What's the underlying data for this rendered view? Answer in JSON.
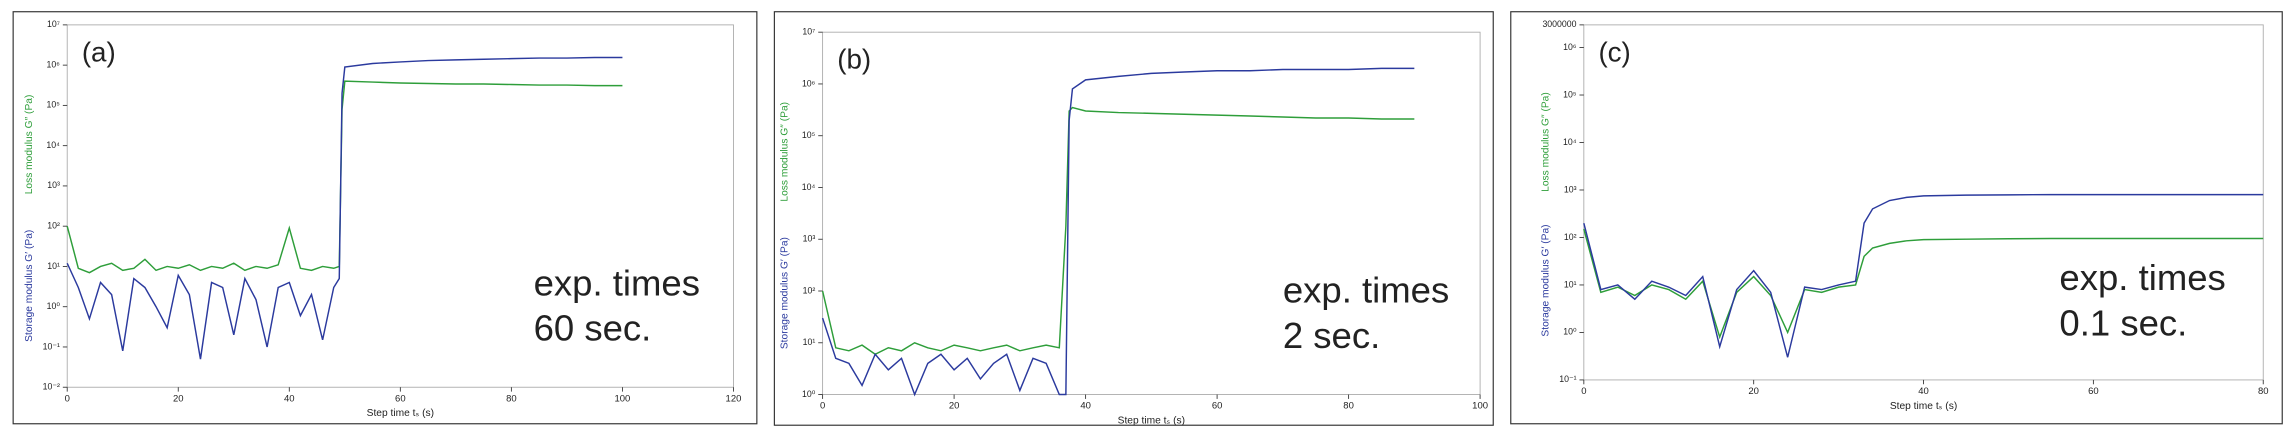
{
  "chart_data": [
    {
      "type": "line",
      "label": "(a)",
      "annotation": [
        "exp. times",
        "60 sec."
      ],
      "x_label": "Step time tₛ (s)",
      "log_y": true,
      "x": [
        0,
        2,
        4,
        6,
        8,
        10,
        12,
        14,
        16,
        18,
        20,
        22,
        24,
        26,
        28,
        30,
        32,
        34,
        36,
        38,
        40,
        42,
        44,
        46,
        48,
        49,
        49.5,
        50,
        55,
        60,
        65,
        70,
        75,
        80,
        85,
        90,
        95,
        100
      ],
      "series": [
        {
          "name": "Loss modulus G″ (Pa)",
          "color": "#2e9e3a",
          "values": [
            100,
            9,
            7,
            10,
            12,
            8,
            9,
            15,
            8,
            10,
            9,
            11,
            8,
            10,
            9,
            12,
            8,
            10,
            9,
            11,
            90,
            9,
            8,
            10,
            9,
            10,
            80000,
            400000,
            380000,
            360000,
            350000,
            340000,
            340000,
            330000,
            320000,
            320000,
            310000,
            310000
          ]
        },
        {
          "name": "Storage modulus G′ (Pa)",
          "color": "#2b3a9e",
          "values": [
            12,
            3,
            0.5,
            4,
            2,
            0.08,
            5,
            3,
            1,
            0.3,
            6,
            2,
            0.05,
            4,
            3,
            0.2,
            5,
            1.5,
            0.1,
            3,
            4,
            0.6,
            2,
            0.15,
            3,
            5,
            200000,
            900000,
            1100000,
            1200000,
            1300000,
            1350000,
            1400000,
            1450000,
            1500000,
            1500000,
            1550000,
            1550000
          ]
        }
      ],
      "xlim": [
        0,
        120
      ],
      "xticks": [
        0,
        20,
        40,
        60,
        80,
        100,
        120
      ],
      "ylim": [
        0.01,
        10000000
      ],
      "yticks": [
        {
          "value": 10000000,
          "label": "10⁷"
        },
        {
          "value": 1000000,
          "label": "10⁶"
        },
        {
          "value": 100000,
          "label": "10⁵"
        },
        {
          "value": 10000,
          "label": "10⁴"
        },
        {
          "value": 1000,
          "label": "10³"
        },
        {
          "value": 100,
          "label": "10²"
        },
        {
          "value": 10,
          "label": "10¹"
        },
        {
          "value": 1,
          "label": "10⁰"
        },
        {
          "value": 0.1,
          "label": "10⁻¹"
        },
        {
          "value": 0.01,
          "label": "10⁻²"
        }
      ]
    },
    {
      "type": "line",
      "label": "(b)",
      "annotation": [
        "exp. times",
        "2 sec."
      ],
      "x_label": "Step time tₛ (s)",
      "log_y": true,
      "x": [
        0,
        2,
        4,
        6,
        8,
        10,
        12,
        14,
        16,
        18,
        20,
        22,
        24,
        26,
        28,
        30,
        32,
        34,
        36,
        37,
        37.5,
        38,
        40,
        45,
        50,
        55,
        60,
        65,
        70,
        75,
        80,
        85,
        90
      ],
      "series": [
        {
          "name": "Loss modulus G″ (Pa)",
          "color": "#2e9e3a",
          "values": [
            100,
            8,
            7,
            9,
            6,
            8,
            7,
            10,
            8,
            7,
            9,
            8,
            7,
            8,
            9,
            7,
            8,
            9,
            8,
            1800,
            300000,
            350000,
            300000,
            280000,
            270000,
            260000,
            250000,
            240000,
            230000,
            220000,
            220000,
            210000,
            210000
          ]
        },
        {
          "name": "Storage modulus G′ (Pa)",
          "color": "#2b3a9e",
          "values": [
            30,
            5,
            4,
            1.5,
            6,
            3,
            5,
            1,
            4,
            6,
            3,
            5,
            2,
            4,
            6,
            1.2,
            5,
            4,
            1,
            1,
            200000,
            800000,
            1200000,
            1400000,
            1600000,
            1700000,
            1800000,
            1800000,
            1900000,
            1900000,
            1900000,
            2000000,
            2000000
          ]
        }
      ],
      "xlim": [
        0,
        100
      ],
      "xticks": [
        0,
        20,
        40,
        60,
        80,
        100
      ],
      "ylim": [
        1,
        10000000
      ],
      "yticks": [
        {
          "value": 10000000,
          "label": "10⁷"
        },
        {
          "value": 1000000,
          "label": "10⁶"
        },
        {
          "value": 100000,
          "label": "10⁵"
        },
        {
          "value": 10000,
          "label": "10⁴"
        },
        {
          "value": 1000,
          "label": "10³"
        },
        {
          "value": 100,
          "label": "10²"
        },
        {
          "value": 10,
          "label": "10¹"
        },
        {
          "value": 1,
          "label": "10⁰"
        }
      ]
    },
    {
      "type": "line",
      "label": "(c)",
      "annotation": [
        "exp. times",
        "0.1 sec."
      ],
      "x_label": "Step time tₛ (s)",
      "log_y": true,
      "x": [
        0,
        2,
        4,
        6,
        8,
        10,
        12,
        14,
        16,
        18,
        20,
        22,
        24,
        26,
        28,
        30,
        32,
        33,
        34,
        36,
        38,
        40,
        45,
        50,
        55,
        60,
        65,
        70,
        75,
        80
      ],
      "series": [
        {
          "name": "Loss modulus G″ (Pa)",
          "color": "#2e9e3a",
          "values": [
            150,
            7,
            9,
            6,
            10,
            8,
            5,
            12,
            0.8,
            7,
            15,
            6,
            1,
            8,
            7,
            9,
            10,
            40,
            60,
            75,
            85,
            90,
            92,
            94,
            95,
            95,
            95,
            95,
            95,
            95
          ]
        },
        {
          "name": "Storage modulus G′ (Pa)",
          "color": "#2b3a9e",
          "values": [
            200,
            8,
            10,
            5,
            12,
            9,
            6,
            15,
            0.5,
            8,
            20,
            7,
            0.3,
            9,
            8,
            10,
            12,
            200,
            400,
            600,
            700,
            750,
            780,
            790,
            800,
            800,
            800,
            800,
            800,
            800
          ]
        }
      ],
      "xlim": [
        0,
        80
      ],
      "xticks": [
        0,
        20,
        40,
        60,
        80
      ],
      "ylim": [
        0.1,
        3000000
      ],
      "yticks": [
        3000000,
        {
          "value": 1000000,
          "label": "10⁶"
        },
        {
          "value": 100000,
          "label": "10⁵"
        },
        {
          "value": 10000,
          "label": "10⁴"
        },
        {
          "value": 1000,
          "label": "10³"
        },
        {
          "value": 100,
          "label": "10²"
        },
        {
          "value": 10,
          "label": "10¹"
        },
        {
          "value": 1,
          "label": "10⁰"
        },
        {
          "value": 0.1,
          "label": "10⁻¹"
        }
      ]
    }
  ]
}
